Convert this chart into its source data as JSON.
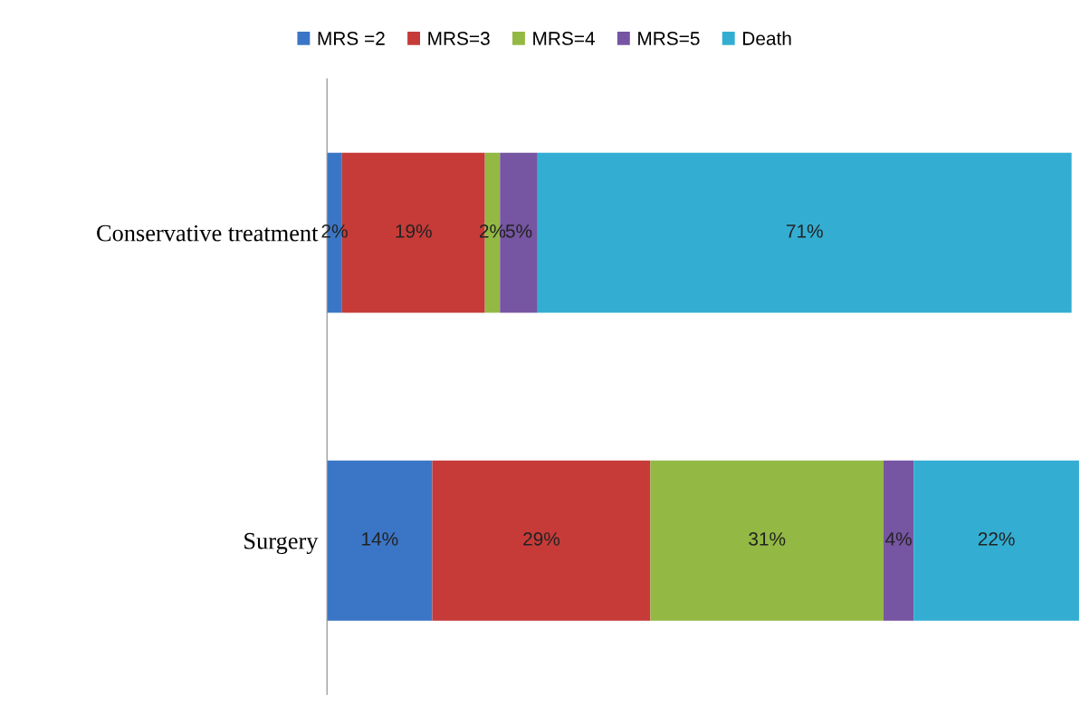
{
  "chart_data": {
    "type": "bar",
    "orientation": "horizontal",
    "stacked": true,
    "legend": "top",
    "grid": false,
    "tick_labels": "y",
    "categories": [
      "Conservative treatment",
      "Surgery"
    ],
    "series": [
      {
        "name": "MRS =2",
        "color": "#3b76c6",
        "values": [
          2,
          14
        ],
        "value_labels": [
          "2%",
          "14%"
        ]
      },
      {
        "name": "MRS=3",
        "color": "#c63b38",
        "values": [
          19,
          29
        ],
        "value_labels": [
          "19%",
          "29%"
        ]
      },
      {
        "name": "MRS=4",
        "color": "#93b944",
        "values": [
          2,
          31
        ],
        "value_labels": [
          "2%",
          "31%"
        ]
      },
      {
        "name": "MRS=5",
        "color": "#7655a2",
        "values": [
          5,
          4
        ],
        "value_labels": [
          "5%",
          "4%"
        ]
      },
      {
        "name": "Death",
        "color": "#33aed2",
        "values": [
          71,
          22
        ],
        "value_labels": [
          "71%",
          "22%"
        ]
      }
    ]
  }
}
